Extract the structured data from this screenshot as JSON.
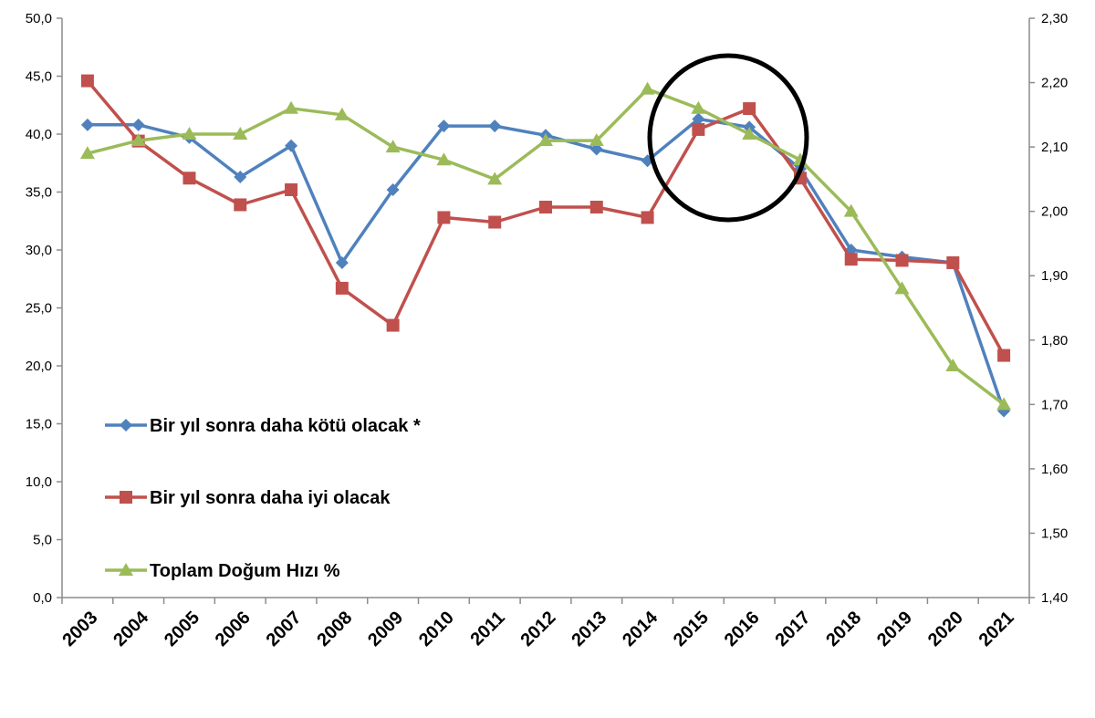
{
  "chart_data": {
    "type": "line",
    "categories": [
      "2003",
      "2004",
      "2005",
      "2006",
      "2007",
      "2008",
      "2009",
      "2010",
      "2011",
      "2012",
      "2013",
      "2014",
      "2015",
      "2016",
      "2017",
      "2018",
      "2019",
      "2020",
      "2021"
    ],
    "series": [
      {
        "name": "Bir yıl sonra daha kötü olacak *",
        "axis": "left",
        "color": "#4F81BD",
        "marker": "diamond",
        "values": [
          40.8,
          40.8,
          39.7,
          36.3,
          39.0,
          28.9,
          35.2,
          40.7,
          40.7,
          39.9,
          38.7,
          37.7,
          41.3,
          40.6,
          37.0,
          30.0,
          29.4,
          28.9,
          16.1
        ]
      },
      {
        "name": "Bir yıl sonra daha iyi olacak",
        "axis": "left",
        "color": "#C0504D",
        "marker": "square",
        "values": [
          44.6,
          39.4,
          36.2,
          33.9,
          35.2,
          26.7,
          23.5,
          32.8,
          32.4,
          33.7,
          33.7,
          32.8,
          40.4,
          42.2,
          36.2,
          29.2,
          29.1,
          28.9,
          20.9
        ]
      },
      {
        "name": "Toplam Doğum Hızı %",
        "axis": "right",
        "color": "#9BBB59",
        "marker": "triangle",
        "values": [
          2.09,
          2.11,
          2.12,
          2.12,
          2.16,
          2.15,
          2.1,
          2.08,
          2.05,
          2.11,
          2.11,
          2.19,
          2.16,
          2.12,
          2.08,
          2.0,
          1.88,
          1.76,
          1.7
        ]
      }
    ],
    "y_left": {
      "min": 0,
      "max": 50,
      "step": 5,
      "tick_labels": [
        "0,0",
        "5,0",
        "10,0",
        "15,0",
        "20,0",
        "25,0",
        "30,0",
        "35,0",
        "40,0",
        "45,0",
        "50,0"
      ]
    },
    "y_right": {
      "min": 1.4,
      "max": 2.3,
      "step": 0.1,
      "tick_labels": [
        "1,40",
        "1,50",
        "1,60",
        "1,70",
        "1,80",
        "1,90",
        "2,00",
        "2,10",
        "2,20",
        "2,30"
      ]
    },
    "legend": {
      "placement": "left-middle-inside",
      "entries": [
        "Bir yıl sonra daha kötü olacak *",
        "Bir yıl sonra daha iyi olacak",
        "Toplam Doğum Hızı %"
      ]
    },
    "annotation": {
      "type": "circle",
      "around": [
        "2015",
        "2016"
      ]
    },
    "grid": false
  }
}
